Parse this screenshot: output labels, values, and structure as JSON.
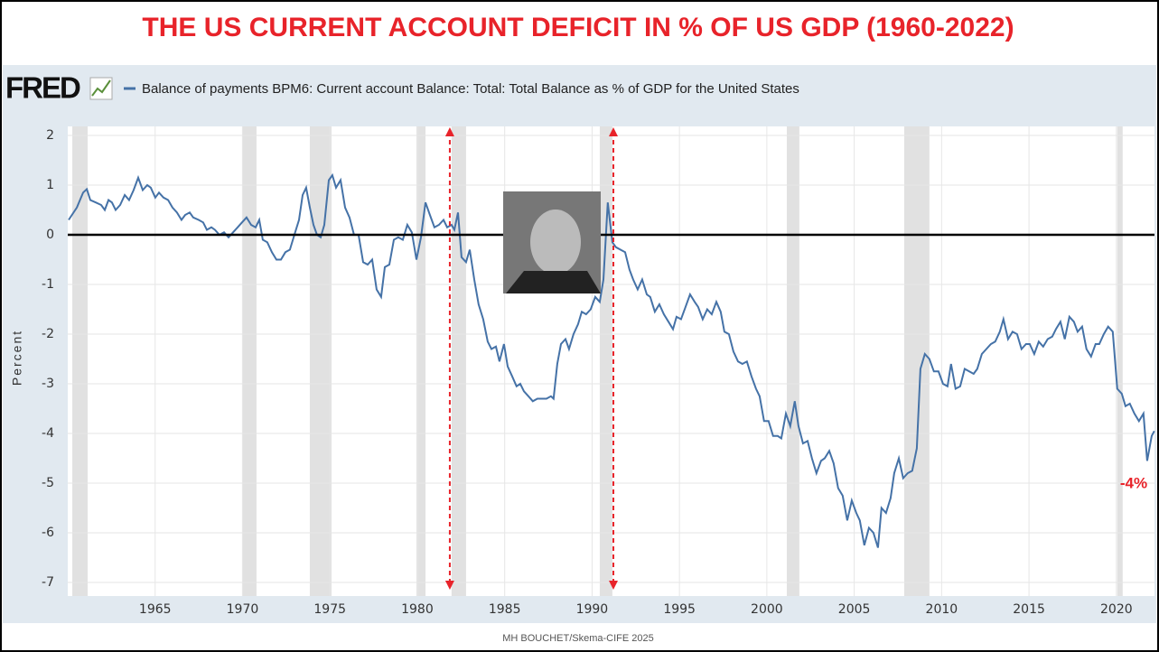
{
  "chart_data": {
    "type": "line",
    "title": "THE US CURRENT ACCOUNT DEFICIT IN % OF US GDP (1960-2022)",
    "source": "FRED",
    "y_label": "Percent",
    "annotation": "-4%",
    "footer": "MH BOUCHET/Skema-CIFE 2025",
    "xlim": [
      1960,
      2022.18
    ],
    "xticks": [
      1965,
      1970,
      1975,
      1980,
      1985,
      1990,
      1995,
      2000,
      2005,
      2010,
      2015,
      2020
    ],
    "ylim": [
      -7,
      2
    ],
    "yticks": [
      -7,
      -6,
      -5,
      -4,
      -3,
      -2,
      -1,
      0,
      1,
      2
    ],
    "grid": true,
    "reference_line": 0,
    "vertical_markers": [
      1981.86,
      1991.22
    ],
    "recessions": [
      [
        1960.26,
        1961.14
      ],
      [
        1969.97,
        1970.8
      ],
      [
        1973.85,
        1975.09
      ],
      [
        1979.95,
        1980.47
      ],
      [
        1981.96,
        1982.79
      ],
      [
        1990.44,
        1991.16
      ],
      [
        2001.14,
        2001.86
      ],
      [
        2007.86,
        2009.3
      ],
      [
        2020.05,
        2020.36
      ]
    ],
    "x": [
      1960.05,
      1960.52,
      1960.88,
      1961.09,
      1961.29,
      1961.6,
      1961.91,
      1962.12,
      1962.33,
      1962.53,
      1962.74,
      1963.0,
      1963.26,
      1963.51,
      1963.77,
      1964.03,
      1964.29,
      1964.55,
      1964.75,
      1965.01,
      1965.22,
      1965.48,
      1965.74,
      1965.99,
      1966.25,
      1966.51,
      1966.72,
      1966.98,
      1967.18,
      1967.49,
      1967.75,
      1967.96,
      1968.22,
      1968.42,
      1968.68,
      1968.94,
      1969.2,
      1969.46,
      1969.72,
      1969.97,
      1970.23,
      1970.49,
      1970.75,
      1970.96,
      1971.16,
      1971.42,
      1971.68,
      1971.94,
      1972.2,
      1972.45,
      1972.71,
      1972.97,
      1973.23,
      1973.44,
      1973.64,
      1973.85,
      1974.06,
      1974.26,
      1974.47,
      1974.68,
      1974.94,
      1975.14,
      1975.35,
      1975.61,
      1975.87,
      1976.12,
      1976.38,
      1976.64,
      1976.9,
      1977.16,
      1977.42,
      1977.67,
      1977.93,
      1978.14,
      1978.4,
      1978.66,
      1978.91,
      1979.17,
      1979.43,
      1979.69,
      1979.95,
      1980.21,
      1980.47,
      1980.72,
      1980.98,
      1981.24,
      1981.5,
      1981.71,
      1981.96,
      1982.12,
      1982.33,
      1982.53,
      1982.79,
      1983.0,
      1983.26,
      1983.51,
      1983.77,
      1984.03,
      1984.24,
      1984.5,
      1984.7,
      1984.96,
      1985.17,
      1985.43,
      1985.68,
      1985.89,
      1986.1,
      1986.36,
      1986.61,
      1986.87,
      1987.13,
      1987.39,
      1987.65,
      1987.8,
      1988.01,
      1988.22,
      1988.48,
      1988.68,
      1988.94,
      1989.2,
      1989.41,
      1989.66,
      1989.92,
      1990.18,
      1990.44,
      1990.65,
      1990.9,
      1991.16,
      1991.37,
      1991.63,
      1991.89,
      1992.14,
      1992.35,
      1992.61,
      1992.87,
      1993.13,
      1993.33,
      1993.59,
      1993.85,
      1994.11,
      1994.37,
      1994.63,
      1994.83,
      1995.09,
      1995.35,
      1995.61,
      1995.87,
      1996.07,
      1996.33,
      1996.59,
      1996.85,
      1997.11,
      1997.36,
      1997.57,
      1997.83,
      1998.09,
      1998.35,
      1998.6,
      1998.86,
      1999.12,
      1999.38,
      1999.59,
      1999.84,
      2000.1,
      2000.36,
      2000.62,
      2000.83,
      2001.09,
      2001.34,
      2001.6,
      2001.81,
      2002.07,
      2002.33,
      2002.58,
      2002.84,
      2003.1,
      2003.31,
      2003.57,
      2003.82,
      2004.08,
      2004.34,
      2004.6,
      2004.86,
      2005.12,
      2005.32,
      2005.58,
      2005.84,
      2006.1,
      2006.36,
      2006.56,
      2006.82,
      2007.08,
      2007.29,
      2007.55,
      2007.8,
      2008.06,
      2008.32,
      2008.58,
      2008.79,
      2009.04,
      2009.3,
      2009.56,
      2009.82,
      2010.08,
      2010.34,
      2010.54,
      2010.8,
      2011.06,
      2011.32,
      2011.58,
      2011.83,
      2012.04,
      2012.3,
      2012.56,
      2012.82,
      2013.07,
      2013.33,
      2013.54,
      2013.8,
      2014.06,
      2014.32,
      2014.57,
      2014.83,
      2015.04,
      2015.3,
      2015.56,
      2015.81,
      2016.07,
      2016.33,
      2016.54,
      2016.8,
      2017.05,
      2017.31,
      2017.57,
      2017.78,
      2018.04,
      2018.29,
      2018.55,
      2018.81,
      2019.02,
      2019.28,
      2019.53,
      2019.79,
      2020.05,
      2020.31,
      2020.52,
      2020.77,
      2021.03,
      2021.29,
      2021.55,
      2021.76,
      2022.02,
      2022.17
    ],
    "series": [
      {
        "name": "Balance of payments BPM6: Current account Balance: Total: Total Balance as % of GDP for the United States",
        "color": "#4572a7",
        "values": [
          0.3,
          0.55,
          0.85,
          0.92,
          0.7,
          0.65,
          0.6,
          0.5,
          0.7,
          0.65,
          0.5,
          0.6,
          0.8,
          0.7,
          0.9,
          1.15,
          0.9,
          1.0,
          0.95,
          0.75,
          0.85,
          0.75,
          0.7,
          0.55,
          0.45,
          0.3,
          0.4,
          0.45,
          0.35,
          0.3,
          0.25,
          0.1,
          0.15,
          0.1,
          0.0,
          0.05,
          -0.05,
          0.05,
          0.15,
          0.25,
          0.35,
          0.2,
          0.15,
          0.3,
          -0.1,
          -0.15,
          -0.35,
          -0.5,
          -0.5,
          -0.35,
          -0.3,
          0.0,
          0.3,
          0.8,
          0.95,
          0.55,
          0.2,
          0.0,
          -0.05,
          0.2,
          1.1,
          1.2,
          0.95,
          1.1,
          0.55,
          0.35,
          0.0,
          0.0,
          -0.55,
          -0.6,
          -0.5,
          -1.1,
          -1.25,
          -0.65,
          -0.6,
          -0.1,
          -0.05,
          -0.1,
          0.2,
          0.05,
          -0.5,
          -0.05,
          0.65,
          0.4,
          0.15,
          0.2,
          0.3,
          0.15,
          0.2,
          0.1,
          0.45,
          -0.45,
          -0.55,
          -0.3,
          -0.9,
          -1.4,
          -1.7,
          -2.15,
          -2.3,
          -2.25,
          -2.55,
          -2.2,
          -2.65,
          -2.85,
          -3.05,
          -3.0,
          -3.15,
          -3.25,
          -3.35,
          -3.3,
          -3.3,
          -3.3,
          -3.25,
          -3.3,
          -2.6,
          -2.2,
          -2.1,
          -2.3,
          -2.0,
          -1.8,
          -1.55,
          -1.6,
          -1.5,
          -1.25,
          -1.35,
          -0.9,
          0.65,
          -0.15,
          -0.25,
          -0.3,
          -0.35,
          -0.7,
          -0.9,
          -1.1,
          -0.9,
          -1.2,
          -1.25,
          -1.55,
          -1.4,
          -1.6,
          -1.75,
          -1.9,
          -1.65,
          -1.7,
          -1.45,
          -1.2,
          -1.35,
          -1.45,
          -1.7,
          -1.5,
          -1.6,
          -1.35,
          -1.55,
          -1.95,
          -2.0,
          -2.35,
          -2.55,
          -2.6,
          -2.55,
          -2.85,
          -3.1,
          -3.25,
          -3.75,
          -3.75,
          -4.05,
          -4.05,
          -4.1,
          -3.6,
          -3.85,
          -3.35,
          -3.85,
          -4.2,
          -4.15,
          -4.5,
          -4.8,
          -4.55,
          -4.5,
          -4.35,
          -4.6,
          -5.1,
          -5.25,
          -5.75,
          -5.35,
          -5.6,
          -5.75,
          -6.25,
          -5.9,
          -6.0,
          -6.3,
          -5.5,
          -5.6,
          -5.3,
          -4.8,
          -4.5,
          -4.9,
          -4.8,
          -4.75,
          -4.3,
          -2.7,
          -2.4,
          -2.5,
          -2.75,
          -2.75,
          -3.0,
          -3.05,
          -2.6,
          -3.1,
          -3.05,
          -2.7,
          -2.75,
          -2.8,
          -2.7,
          -2.4,
          -2.3,
          -2.2,
          -2.15,
          -1.95,
          -1.7,
          -2.1,
          -1.95,
          -2.0,
          -2.3,
          -2.2,
          -2.2,
          -2.4,
          -2.15,
          -2.25,
          -2.1,
          -2.05,
          -1.9,
          -1.75,
          -2.1,
          -1.65,
          -1.75,
          -1.95,
          -1.85,
          -2.3,
          -2.45,
          -2.2,
          -2.2,
          -2.0,
          -1.85,
          -1.95,
          -3.1,
          -3.2,
          -3.45,
          -3.4,
          -3.6,
          -3.75,
          -3.6,
          -4.55,
          -4.05,
          -3.95
        ]
      }
    ]
  }
}
